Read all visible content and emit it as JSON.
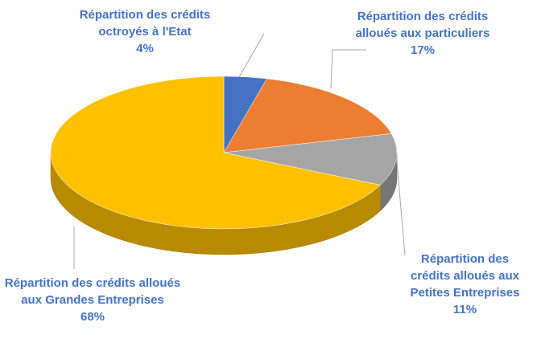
{
  "chart_data": {
    "type": "pie",
    "categories": [
      "Répartition des crédits octroyés à l'Etat",
      "Répartition des crédits alloués aux particuliers",
      "Répartition des crédits alloués aux Petites Entreprises",
      "Répartition des crédits alloués aux Grandes Entreprises"
    ],
    "values": [
      4,
      17,
      11,
      68
    ],
    "value_labels": [
      "4%",
      "17%",
      "11%",
      "68%"
    ],
    "colors": [
      "#4472c4",
      "#ed7d31",
      "#a5a5a5",
      "#ffc000"
    ]
  }
}
